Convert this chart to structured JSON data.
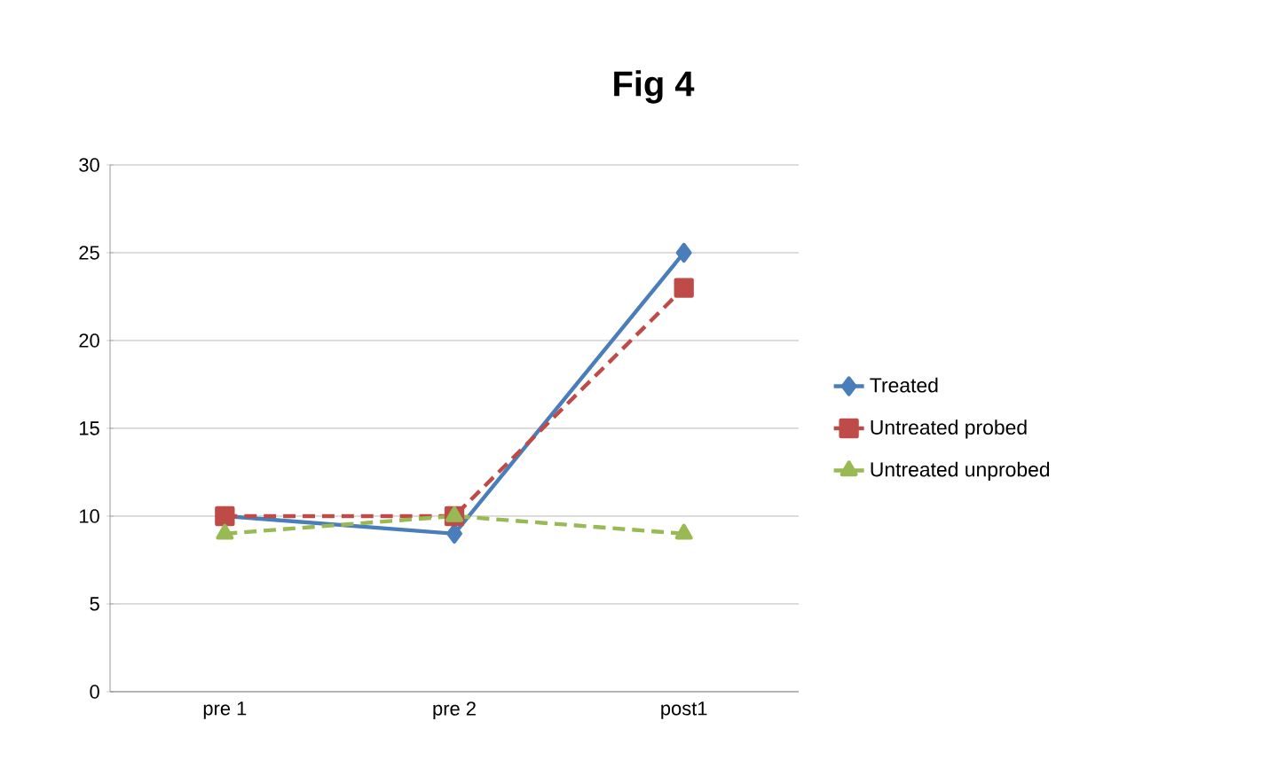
{
  "chart_data": {
    "type": "line",
    "title": "Fig 4",
    "categories": [
      "pre 1",
      "pre 2",
      "post1"
    ],
    "series": [
      {
        "name": "Treated",
        "color": "#4a7ebb",
        "values": [
          10,
          9,
          25
        ],
        "marker": "diamond",
        "line_style": "solid"
      },
      {
        "name": "Untreated probed",
        "color": "#be4b48",
        "values": [
          10,
          10,
          23
        ],
        "marker": "square",
        "line_style": "dashed"
      },
      {
        "name": "Untreated unprobed",
        "color": "#98b954",
        "values": [
          9,
          10,
          9
        ],
        "marker": "triangle",
        "line_style": "dashed"
      }
    ],
    "ylim": [
      0,
      30
    ],
    "yticks": [
      0,
      5,
      10,
      15,
      20,
      25,
      30
    ],
    "grid": "y",
    "legend": "right"
  }
}
